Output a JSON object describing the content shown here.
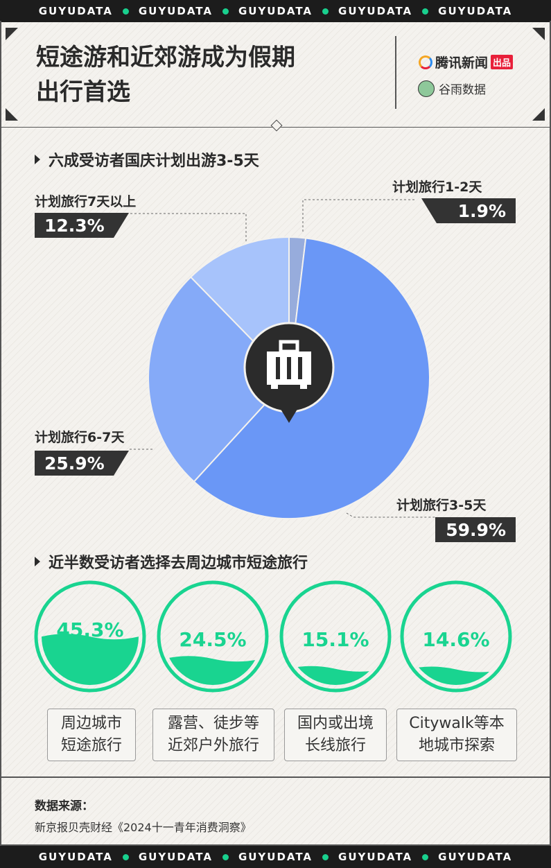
{
  "band_text": "GUYUDATA",
  "title_lines": [
    "短途游和近郊游成为假期",
    "出行首选"
  ],
  "logos": {
    "tencent": "腾讯新闻",
    "tencent_badge": "出品",
    "guyu": "谷雨数据"
  },
  "section1": "六成受访者国庆计划出游3-5天",
  "section2": "近半数受访者选择去周边城市短途旅行",
  "chart_data": [
    {
      "type": "pie",
      "title": "六成受访者国庆计划出游3-5天",
      "start": "12 o'clock, clockwise",
      "slices": [
        {
          "label": "计划旅行1-2天",
          "value": 1.9,
          "display": "1.9%",
          "color": "#97acdc"
        },
        {
          "label": "计划旅行3-5天",
          "value": 59.9,
          "display": "59.9%",
          "color": "#6a97f6"
        },
        {
          "label": "计划旅行6-7天",
          "value": 25.9,
          "display": "25.9%",
          "color": "#85aaf8"
        },
        {
          "label": "计划旅行7天以上",
          "value": 12.3,
          "display": "12.3%",
          "color": "#a7c3fb"
        }
      ],
      "center_icon": "suitcase-pin-icon"
    },
    {
      "type": "gauge",
      "title": "近半数受访者选择去周边城市短途旅行",
      "color": "#19d490",
      "items": [
        {
          "value": 45.3,
          "display": "45.3%",
          "label": [
            "周边城市",
            "短途旅行"
          ]
        },
        {
          "value": 24.5,
          "display": "24.5%",
          "label": [
            "露营、徒步等",
            "近郊户外旅行"
          ]
        },
        {
          "value": 15.1,
          "display": "15.1%",
          "label": [
            "国内或出境",
            "长线旅行"
          ]
        },
        {
          "value": 14.6,
          "display": "14.6%",
          "label": [
            "Citywalk等本",
            "地城市探索"
          ]
        }
      ]
    }
  ],
  "source": {
    "label": "数据来源：",
    "text": "新京报贝壳财经《2024十一青年消费洞察》"
  }
}
